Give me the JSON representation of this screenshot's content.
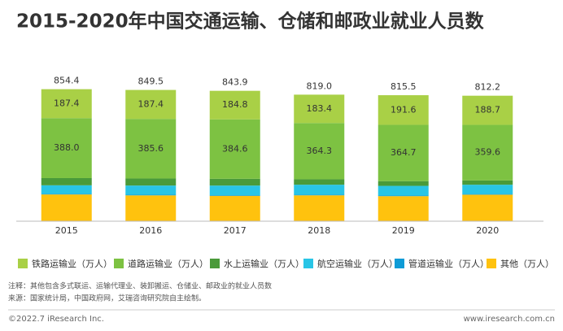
{
  "chart_data": {
    "type": "stacked_bar",
    "title": "2015-2020年中国交通运输、仓储和邮政业就业人员数",
    "categories": [
      "2015",
      "2016",
      "2017",
      "2018",
      "2019",
      "2020"
    ],
    "series": [
      {
        "name": "其他（万人）",
        "color": "#ffc20e",
        "values": [
          173.1,
          167.3,
          164.2,
          167.6,
          162.2,
          171.8
        ]
      },
      {
        "name": "管道运输业（万人）",
        "color": "#0e9bd6",
        "values": [
          4.0,
          4.0,
          4.0,
          4.0,
          4.0,
          4.0
        ]
      },
      {
        "name": "航空运输业（万人）",
        "color": "#29c5e6",
        "values": [
          55.3,
          59.5,
          62.4,
          64.6,
          62.4,
          60.3
        ]
      },
      {
        "name": "水上运输业（万人）",
        "color": "#4a9a3a",
        "values": [
          46.6,
          45.7,
          43.9,
          35.1,
          30.6,
          27.8
        ]
      },
      {
        "name": "道路运输业（万人）",
        "color": "#7dc242",
        "values": [
          388.0,
          385.6,
          384.6,
          364.3,
          364.7,
          359.6
        ],
        "value_labels": [
          "388.0",
          "385.6",
          "384.6",
          "364.3",
          "364.7",
          "359.6"
        ]
      },
      {
        "name": "铁路运输业（万人）",
        "color": "#a9d046",
        "values": [
          187.4,
          187.4,
          184.8,
          183.4,
          191.6,
          188.7
        ],
        "value_labels": [
          "187.4",
          "187.4",
          "184.8",
          "183.4",
          "191.6",
          "188.7"
        ]
      }
    ],
    "label_series": [
      0,
      2,
      4,
      5
    ],
    "total_labels": [
      "854.4",
      "849.5",
      "843.9",
      "819.0",
      "815.5",
      "812.2"
    ],
    "notes": [
      "注释：其他包含多式联运、运输代理业、装卸搬运、仓储业、邮政业的就业人员数",
      "来源：国家统计局，中国政府网，艾瑞咨询研究院自主绘制。"
    ],
    "footer_left": "©2022.7 iResearch Inc.",
    "footer_right": "www.iresearch.com.cn"
  }
}
